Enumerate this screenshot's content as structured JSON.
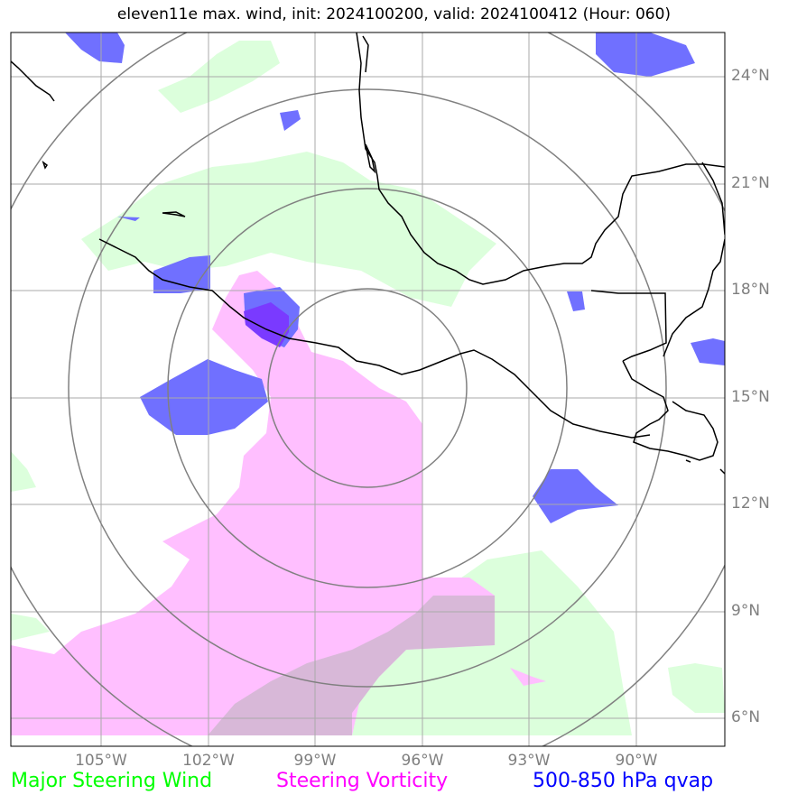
{
  "title": "eleven11e max. wind, init: 2024100200, valid: 2024100412 (Hour: 060)",
  "map": {
    "lat_labels": [
      "24°N",
      "21°N",
      "18°N",
      "15°N",
      "12°N",
      "9°N",
      "6°N"
    ],
    "lon_labels": [
      "105°W",
      "102°W",
      "99°W",
      "96°W",
      "93°W",
      "90°W"
    ],
    "center": {
      "lat": 15.5,
      "lon": -97.5
    },
    "range_rings": 4,
    "colors": {
      "major_steering_wind": "#00ff00",
      "steering_vorticity": "#ff00ff",
      "qvap": "#0000ff",
      "grid": "#aaaaaa",
      "rings": "#808080",
      "coast": "#000000"
    }
  },
  "legend": {
    "wind": "Major Steering Wind",
    "vorticity": "Steering Vorticity",
    "qvap": "500-850 hPa qvap"
  }
}
